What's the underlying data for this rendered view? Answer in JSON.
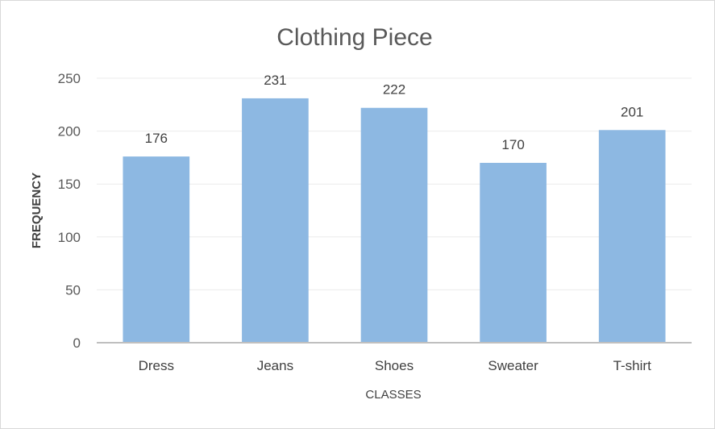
{
  "chart_data": {
    "type": "bar",
    "title": "Clothing Piece",
    "xlabel": "CLASSES",
    "ylabel": "FREQUENCY",
    "categories": [
      "Dress",
      "Jeans",
      "Shoes",
      "Sweater",
      "T-shirt"
    ],
    "values": [
      176,
      231,
      222,
      170,
      201
    ],
    "ylim": [
      0,
      250
    ],
    "yticks": [
      "0",
      "50",
      "100",
      "150",
      "200",
      "250"
    ],
    "grid": true,
    "legend": "none",
    "bar_color": "#8db8e2"
  }
}
